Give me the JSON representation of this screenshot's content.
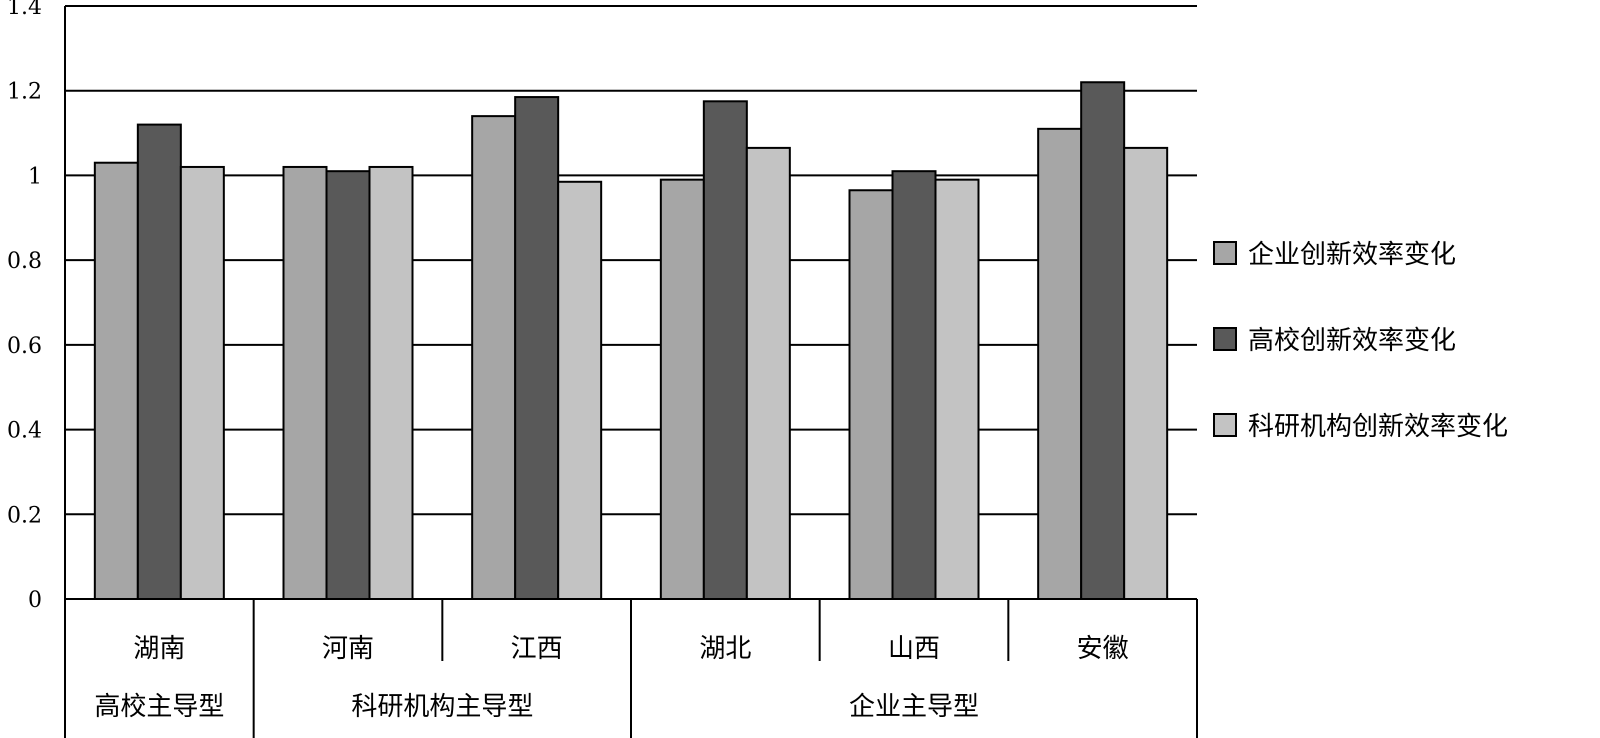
{
  "chart_data": {
    "type": "bar",
    "categories": [
      "湖南",
      "河南",
      "江西",
      "湖北",
      "山西",
      "安徽"
    ],
    "groups": [
      {
        "label": "高校主导型",
        "categories": [
          "湖南"
        ]
      },
      {
        "label": "科研机构主导型",
        "categories": [
          "河南",
          "江西"
        ]
      },
      {
        "label": "企业主导型",
        "categories": [
          "湖北",
          "山西",
          "安徽"
        ]
      }
    ],
    "series": [
      {
        "name": "企业创新效率变化",
        "color": "#a6a6a6",
        "values": [
          1.03,
          1.02,
          1.14,
          0.99,
          0.965,
          1.11
        ]
      },
      {
        "name": "高校创新效率变化",
        "color": "#595959",
        "values": [
          1.12,
          1.01,
          1.185,
          1.175,
          1.01,
          1.22
        ]
      },
      {
        "name": "科研机构创新效率变化",
        "color": "#c3c3c3",
        "values": [
          1.02,
          1.02,
          0.985,
          1.065,
          0.99,
          1.065
        ]
      }
    ],
    "y_ticks": [
      "0",
      "0.2",
      "0.4",
      "0.6",
      "0.8",
      "1",
      "1.2",
      "1.4"
    ],
    "ylim": [
      0,
      1.4
    ],
    "grid": true,
    "legend_position": "right"
  }
}
